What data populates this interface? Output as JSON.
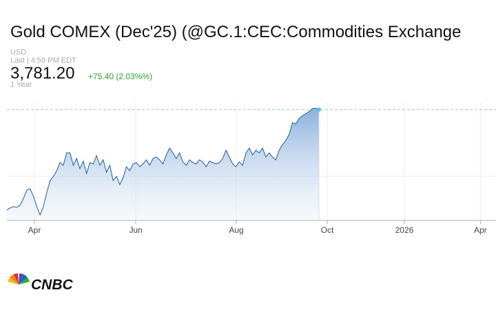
{
  "header": {
    "title": "Gold COMEX (Dec'25) (@GC.1:CEC:Commodities Exchange",
    "currency": "USD",
    "last": "Last | 4:59 PM EDT",
    "price": "3,781.20",
    "change": "+75.40 (2.03%%)",
    "range": "1 Year"
  },
  "chart_data": {
    "type": "line",
    "color": "#1f5a99",
    "values": [
      3002,
      3018,
      3028,
      3023,
      3039,
      3092,
      3156,
      3167,
      3108,
      3028,
      2964,
      3028,
      3135,
      3231,
      3263,
      3306,
      3370,
      3349,
      3445,
      3445,
      3349,
      3402,
      3322,
      3381,
      3285,
      3370,
      3359,
      3423,
      3349,
      3391,
      3295,
      3349,
      3231,
      3263,
      3199,
      3253,
      3338,
      3306,
      3359,
      3370,
      3338,
      3359,
      3391,
      3349,
      3402,
      3413,
      3391,
      3359,
      3429,
      3482,
      3445,
      3402,
      3445,
      3375,
      3349,
      3391,
      3370,
      3359,
      3391,
      3375,
      3338,
      3381,
      3370,
      3359,
      3370,
      3402,
      3466,
      3413,
      3359,
      3338,
      3375,
      3349,
      3445,
      3482,
      3429,
      3466,
      3445,
      3482,
      3413,
      3445,
      3413,
      3391,
      3466,
      3509,
      3541,
      3589,
      3680,
      3669,
      3712,
      3733,
      3749,
      3765,
      3787,
      3792,
      3781.2
    ],
    "xlim": [
      0,
      147.3
    ],
    "xticks": [
      {
        "value": 8.3,
        "label": "Apr"
      },
      {
        "value": 38.8,
        "label": "Jun"
      },
      {
        "value": 69.1,
        "label": "Aug"
      },
      {
        "value": 96.5,
        "label": "Oct"
      },
      {
        "value": 119.7,
        "label": "2026"
      },
      {
        "value": 142.6,
        "label": "Apr"
      }
    ],
    "ylim": [
      2921,
      3840
    ]
  },
  "brand": "CNBC"
}
